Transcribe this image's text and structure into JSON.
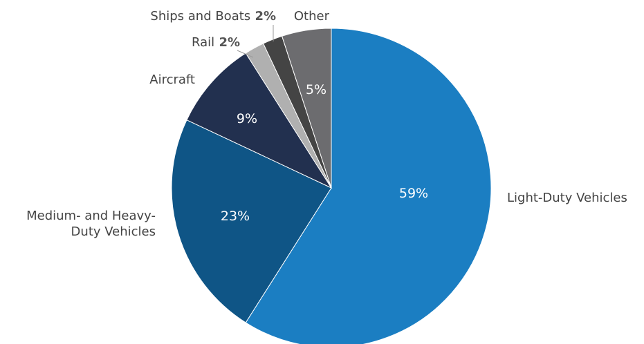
{
  "chart_data": {
    "type": "pie",
    "title": "",
    "start": "top",
    "direction": "clockwise",
    "slices": [
      {
        "label": "Light-Duty Vehicles",
        "label_lines": [
          "Light-Duty Vehicles"
        ],
        "value": 59,
        "value_text": "59%",
        "color": "#1b7ec2",
        "value_position": "inside",
        "label_placement": "right"
      },
      {
        "label": "Medium- and Heavy-Duty Vehicles",
        "label_lines": [
          "Medium- and Heavy-",
          "Duty Vehicles"
        ],
        "value": 23,
        "value_text": "23%",
        "color": "#0f5586",
        "value_position": "inside",
        "label_placement": "left"
      },
      {
        "label": "Aircraft",
        "label_lines": [
          "Aircraft"
        ],
        "value": 9,
        "value_text": "9%",
        "color": "#22304f",
        "value_position": "inside",
        "label_placement": "upper-left"
      },
      {
        "label": "Rail",
        "label_lines": [
          "Rail"
        ],
        "value": 2,
        "value_text": "2%",
        "color": "#b0b0b0",
        "value_position": "outside",
        "label_placement": "top"
      },
      {
        "label": "Ships and Boats",
        "label_lines": [
          "Ships and Boats"
        ],
        "value": 2,
        "value_text": "2%",
        "color": "#444444",
        "value_position": "outside",
        "label_placement": "top"
      },
      {
        "label": "Other",
        "label_lines": [
          "Other"
        ],
        "value": 5,
        "value_text": "5%",
        "color": "#6c6c6f",
        "value_position": "inside",
        "label_placement": "top"
      }
    ]
  }
}
